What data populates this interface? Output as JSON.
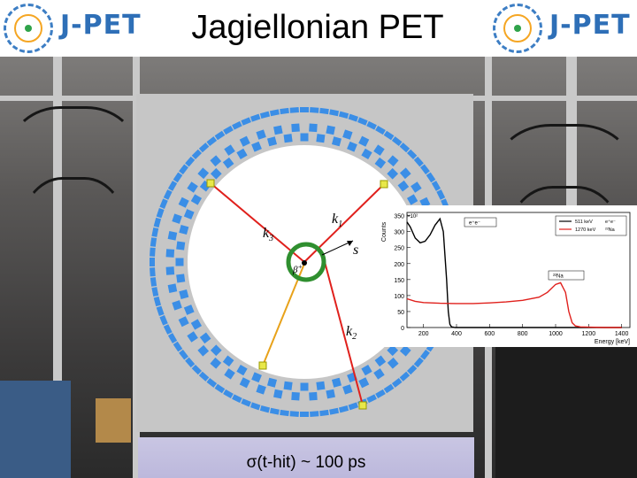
{
  "header": {
    "title": "Jagiellonian PET",
    "logo_text": "J-PET"
  },
  "diagram": {
    "vectors": [
      "k1",
      "k2",
      "k3",
      "s"
    ],
    "vector_k1": "k",
    "vector_k1_sub": "1",
    "vector_k2": "k",
    "vector_k2_sub": "2",
    "vector_k3": "k",
    "vector_k3_sub": "3",
    "vector_s": "s",
    "beta_label": "β",
    "beta_sup": "+",
    "colors": {
      "detector_blue": "#3b8ee6",
      "green_ring": "#2f8f2f",
      "red_line": "#e0201c",
      "orange_line": "#e8a21a",
      "hit_yellow": "#e8e84a"
    }
  },
  "chart_data": {
    "type": "line",
    "x_axis_label": "Energy [keV]",
    "y_axis_label": "Counts",
    "y_multiplier": "×10²",
    "x_ticks": [
      "200",
      "400",
      "600",
      "800",
      "1000",
      "1200",
      "1400"
    ],
    "y_ticks": [
      "0",
      "50",
      "100",
      "150",
      "200",
      "250",
      "300",
      "350"
    ],
    "xlim": [
      100,
      1450
    ],
    "ylim": [
      0,
      360
    ],
    "legend": [
      {
        "name": "511 keV",
        "color": "#000000",
        "note": "e⁺e⁻"
      },
      {
        "name": "1270 keV",
        "color": "#e0201c",
        "note": "²²Na"
      }
    ],
    "annotations": [
      "e⁺e⁻",
      "²²Na"
    ],
    "series": [
      {
        "name": "511 keV",
        "color": "#000000",
        "x": [
          100,
          120,
          150,
          180,
          210,
          240,
          270,
          300,
          320,
          340,
          350,
          360,
          370,
          380,
          390,
          400,
          420,
          500,
          800,
          1000,
          1200,
          1400
        ],
        "y": [
          330,
          315,
          280,
          265,
          270,
          290,
          320,
          340,
          300,
          150,
          50,
          10,
          2,
          1,
          0,
          0,
          0,
          0,
          0,
          0,
          0,
          0
        ]
      },
      {
        "name": "1270 keV",
        "color": "#e0201c",
        "x": [
          100,
          150,
          200,
          300,
          400,
          500,
          600,
          700,
          800,
          900,
          950,
          1000,
          1030,
          1060,
          1080,
          1100,
          1120,
          1150,
          1200,
          1300,
          1400
        ],
        "y": [
          90,
          82,
          78,
          76,
          75,
          75,
          77,
          80,
          85,
          95,
          110,
          135,
          140,
          110,
          50,
          15,
          5,
          2,
          1,
          0,
          0
        ]
      }
    ]
  },
  "caption": {
    "text": "σ(t-hit) ~ 100 ps"
  }
}
